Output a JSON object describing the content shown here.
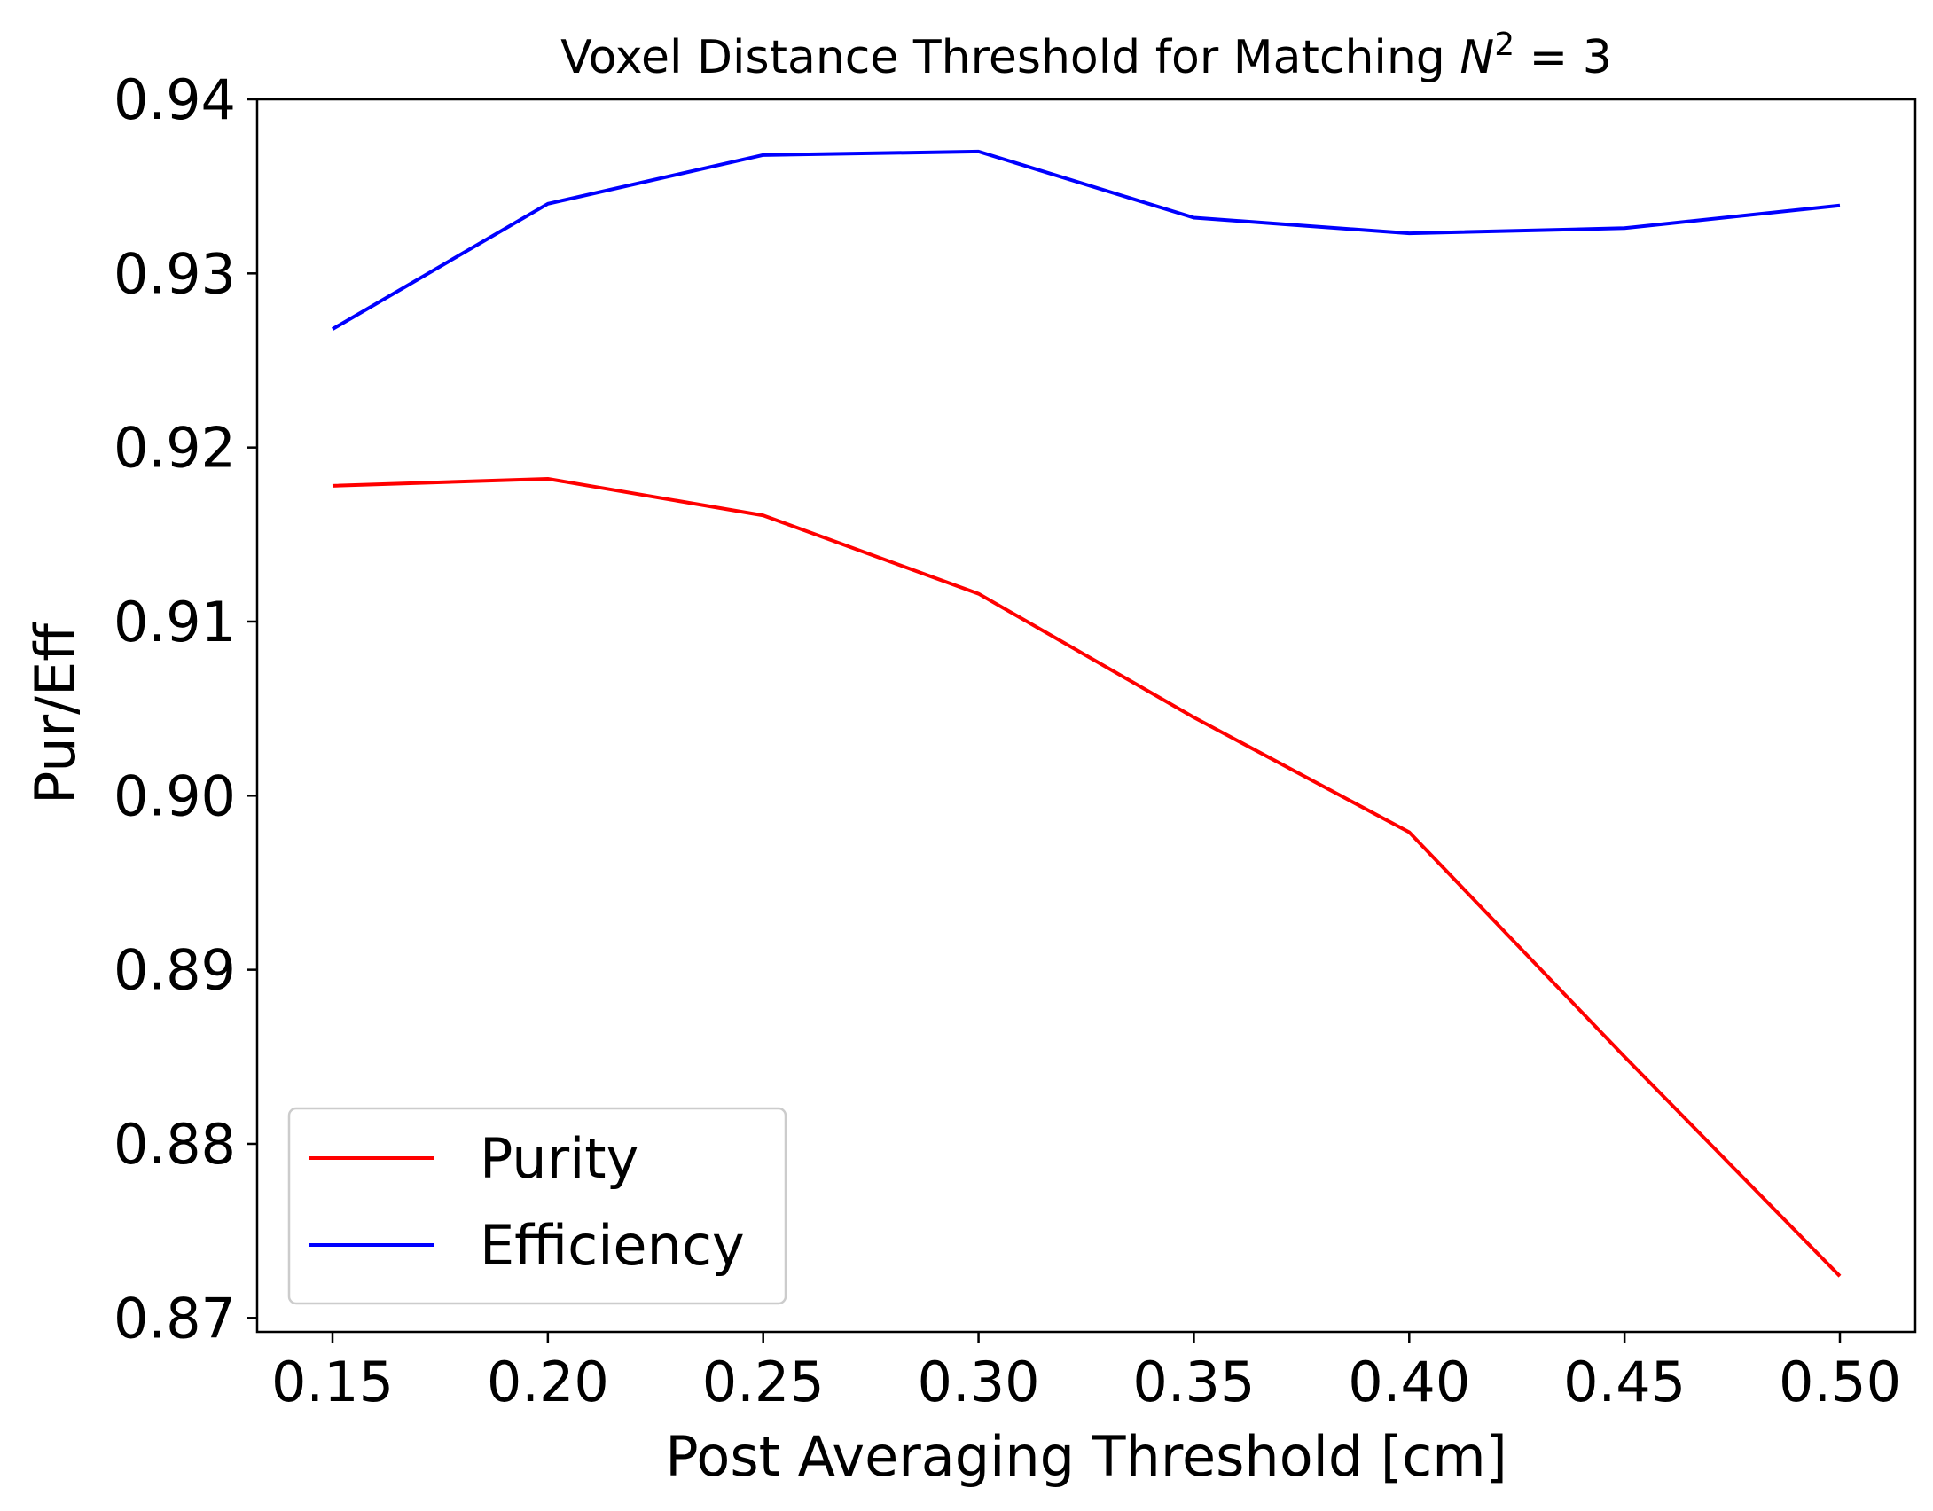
{
  "chart_data": {
    "type": "line",
    "title": "Voxel Distance Threshold for Matching",
    "title_math": {
      "base": "N",
      "exponent": "2",
      "relation": " = 3"
    },
    "xlabel": "Post Averaging Threshold [cm]",
    "ylabel": "Pur/Eff",
    "x": [
      0.15,
      0.2,
      0.25,
      0.3,
      0.35,
      0.4,
      0.45,
      0.5
    ],
    "x_tick_labels": [
      "0.15",
      "0.20",
      "0.25",
      "0.30",
      "0.35",
      "0.40",
      "0.45",
      "0.50"
    ],
    "y_ticks": [
      0.87,
      0.88,
      0.89,
      0.9,
      0.91,
      0.92,
      0.93,
      0.94
    ],
    "y_tick_labels": [
      "0.87",
      "0.88",
      "0.89",
      "0.90",
      "0.91",
      "0.92",
      "0.93",
      "0.94"
    ],
    "xlim": [
      0.1325,
      0.5175
    ],
    "ylim": [
      0.8692,
      0.94
    ],
    "grid": false,
    "legend_position": "lower-left",
    "series": [
      {
        "name": "Purity",
        "color": "#ff0000",
        "values": [
          0.9178,
          0.9182,
          0.9161,
          0.9116,
          0.9045,
          0.8979,
          0.885,
          0.8724
        ]
      },
      {
        "name": "Efficiency",
        "color": "#0000ff",
        "values": [
          0.9268,
          0.934,
          0.9368,
          0.937,
          0.9332,
          0.9323,
          0.9326,
          0.9339
        ]
      }
    ]
  }
}
